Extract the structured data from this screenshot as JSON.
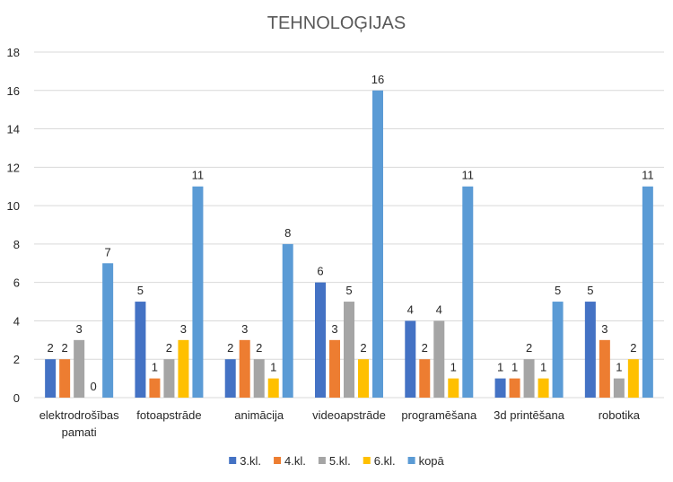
{
  "chart_data": {
    "type": "bar",
    "title": "TEHNOLOĢIJAS",
    "xlabel": "",
    "ylabel": "",
    "ylim": [
      0,
      18
    ],
    "yticks": [
      0,
      2,
      4,
      6,
      8,
      10,
      12,
      14,
      16,
      18
    ],
    "grid": true,
    "legend_position": "bottom",
    "categories": [
      [
        "elektrodrošības",
        "pamati"
      ],
      [
        "fotoapstrāde"
      ],
      [
        "animācija"
      ],
      [
        "videoapstrāde"
      ],
      [
        "programēšana"
      ],
      [
        "3d printēšana"
      ],
      [
        "robotika"
      ]
    ],
    "series": [
      {
        "name": "3.kl.",
        "color": "#4472c4",
        "values": [
          2,
          5,
          2,
          6,
          4,
          1,
          5
        ]
      },
      {
        "name": "4.kl.",
        "color": "#ed7d31",
        "values": [
          2,
          1,
          3,
          3,
          2,
          1,
          3
        ]
      },
      {
        "name": "5.kl.",
        "color": "#a5a5a5",
        "values": [
          3,
          2,
          2,
          5,
          4,
          2,
          1
        ]
      },
      {
        "name": "6.kl.",
        "color": "#ffc000",
        "values": [
          0,
          3,
          1,
          2,
          1,
          1,
          2
        ]
      },
      {
        "name": "kopā",
        "color": "#5b9bd5",
        "values": [
          7,
          11,
          8,
          16,
          11,
          5,
          11
        ]
      }
    ]
  }
}
